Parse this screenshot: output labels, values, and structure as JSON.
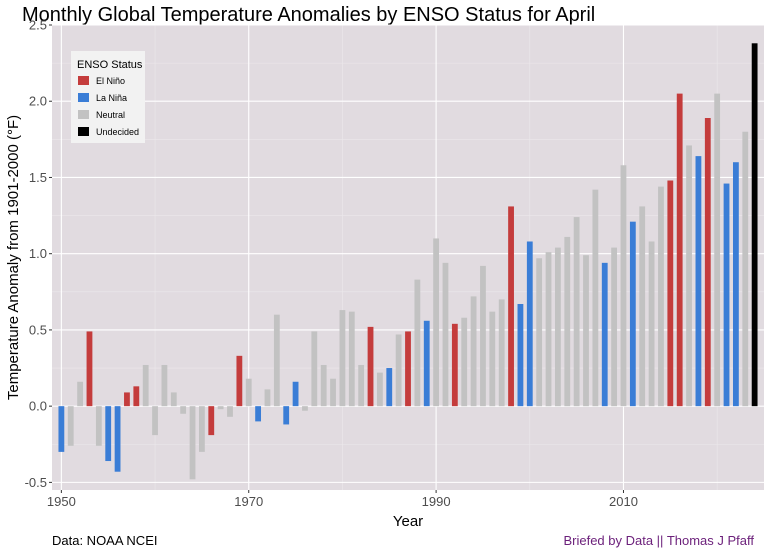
{
  "chart_data": {
    "type": "bar",
    "title": "Monthly Global Temperature Anomalies by ENSO Status for April",
    "xlabel": "Year",
    "ylabel": "Temperature Anomaly from 1901-2000  (°F)",
    "ylim": [
      -0.55,
      2.5
    ],
    "xlim": [
      1949,
      2025
    ],
    "yticks": [
      -0.5,
      0.0,
      0.5,
      1.0,
      1.5,
      2.0,
      2.5
    ],
    "ytick_labels": [
      "-0.5",
      "0.0",
      "0.5",
      "1.0",
      "1.5",
      "2.0",
      "2.5"
    ],
    "xticks": [
      1950,
      1970,
      1990,
      2010
    ],
    "xtick_labels": [
      "1950",
      "1970",
      "1990",
      "2010"
    ],
    "legend": {
      "title": "ENSO Status",
      "position": "top-left",
      "entries": [
        {
          "status": "El Niño",
          "color": "#c43c3c"
        },
        {
          "status": "La Niña",
          "color": "#3a7dd6"
        },
        {
          "status": "Neutral",
          "color": "#c2c2c2"
        },
        {
          "status": "Undecided",
          "color": "#000000"
        }
      ]
    },
    "data": [
      {
        "year": 1950,
        "value": -0.3,
        "status": "La Niña"
      },
      {
        "year": 1951,
        "value": -0.26,
        "status": "Neutral"
      },
      {
        "year": 1952,
        "value": 0.16,
        "status": "Neutral"
      },
      {
        "year": 1953,
        "value": 0.49,
        "status": "El Niño"
      },
      {
        "year": 1954,
        "value": -0.26,
        "status": "Neutral"
      },
      {
        "year": 1955,
        "value": -0.36,
        "status": "La Niña"
      },
      {
        "year": 1956,
        "value": -0.43,
        "status": "La Niña"
      },
      {
        "year": 1957,
        "value": 0.09,
        "status": "El Niño"
      },
      {
        "year": 1958,
        "value": 0.13,
        "status": "El Niño"
      },
      {
        "year": 1959,
        "value": 0.27,
        "status": "Neutral"
      },
      {
        "year": 1960,
        "value": -0.19,
        "status": "Neutral"
      },
      {
        "year": 1961,
        "value": 0.27,
        "status": "Neutral"
      },
      {
        "year": 1962,
        "value": 0.09,
        "status": "Neutral"
      },
      {
        "year": 1963,
        "value": -0.05,
        "status": "Neutral"
      },
      {
        "year": 1964,
        "value": -0.48,
        "status": "Neutral"
      },
      {
        "year": 1965,
        "value": -0.3,
        "status": "Neutral"
      },
      {
        "year": 1966,
        "value": -0.19,
        "status": "El Niño"
      },
      {
        "year": 1967,
        "value": -0.02,
        "status": "Neutral"
      },
      {
        "year": 1968,
        "value": -0.07,
        "status": "Neutral"
      },
      {
        "year": 1969,
        "value": 0.33,
        "status": "El Niño"
      },
      {
        "year": 1970,
        "value": 0.18,
        "status": "Neutral"
      },
      {
        "year": 1971,
        "value": -0.1,
        "status": "La Niña"
      },
      {
        "year": 1972,
        "value": 0.11,
        "status": "Neutral"
      },
      {
        "year": 1973,
        "value": 0.6,
        "status": "Neutral"
      },
      {
        "year": 1974,
        "value": -0.12,
        "status": "La Niña"
      },
      {
        "year": 1975,
        "value": 0.16,
        "status": "La Niña"
      },
      {
        "year": 1976,
        "value": -0.03,
        "status": "Neutral"
      },
      {
        "year": 1977,
        "value": 0.49,
        "status": "Neutral"
      },
      {
        "year": 1978,
        "value": 0.27,
        "status": "Neutral"
      },
      {
        "year": 1979,
        "value": 0.18,
        "status": "Neutral"
      },
      {
        "year": 1980,
        "value": 0.63,
        "status": "Neutral"
      },
      {
        "year": 1981,
        "value": 0.62,
        "status": "Neutral"
      },
      {
        "year": 1982,
        "value": 0.27,
        "status": "Neutral"
      },
      {
        "year": 1983,
        "value": 0.52,
        "status": "El Niño"
      },
      {
        "year": 1984,
        "value": 0.22,
        "status": "Neutral"
      },
      {
        "year": 1985,
        "value": 0.25,
        "status": "La Niña"
      },
      {
        "year": 1986,
        "value": 0.47,
        "status": "Neutral"
      },
      {
        "year": 1987,
        "value": 0.49,
        "status": "El Niño"
      },
      {
        "year": 1988,
        "value": 0.83,
        "status": "Neutral"
      },
      {
        "year": 1989,
        "value": 0.56,
        "status": "La Niña"
      },
      {
        "year": 1990,
        "value": 1.1,
        "status": "Neutral"
      },
      {
        "year": 1991,
        "value": 0.94,
        "status": "Neutral"
      },
      {
        "year": 1992,
        "value": 0.54,
        "status": "El Niño"
      },
      {
        "year": 1993,
        "value": 0.58,
        "status": "Neutral"
      },
      {
        "year": 1994,
        "value": 0.72,
        "status": "Neutral"
      },
      {
        "year": 1995,
        "value": 0.92,
        "status": "Neutral"
      },
      {
        "year": 1996,
        "value": 0.62,
        "status": "Neutral"
      },
      {
        "year": 1997,
        "value": 0.7,
        "status": "Neutral"
      },
      {
        "year": 1998,
        "value": 1.31,
        "status": "El Niño"
      },
      {
        "year": 1999,
        "value": 0.67,
        "status": "La Niña"
      },
      {
        "year": 2000,
        "value": 1.08,
        "status": "La Niña"
      },
      {
        "year": 2001,
        "value": 0.97,
        "status": "Neutral"
      },
      {
        "year": 2002,
        "value": 1.01,
        "status": "Neutral"
      },
      {
        "year": 2003,
        "value": 1.04,
        "status": "Neutral"
      },
      {
        "year": 2004,
        "value": 1.11,
        "status": "Neutral"
      },
      {
        "year": 2005,
        "value": 1.24,
        "status": "Neutral"
      },
      {
        "year": 2006,
        "value": 0.99,
        "status": "Neutral"
      },
      {
        "year": 2007,
        "value": 1.42,
        "status": "Neutral"
      },
      {
        "year": 2008,
        "value": 0.94,
        "status": "La Niña"
      },
      {
        "year": 2009,
        "value": 1.04,
        "status": "Neutral"
      },
      {
        "year": 2010,
        "value": 1.58,
        "status": "Neutral"
      },
      {
        "year": 2011,
        "value": 1.21,
        "status": "La Niña"
      },
      {
        "year": 2012,
        "value": 1.31,
        "status": "Neutral"
      },
      {
        "year": 2013,
        "value": 1.08,
        "status": "Neutral"
      },
      {
        "year": 2014,
        "value": 1.44,
        "status": "Neutral"
      },
      {
        "year": 2015,
        "value": 1.48,
        "status": "El Niño"
      },
      {
        "year": 2016,
        "value": 2.05,
        "status": "El Niño"
      },
      {
        "year": 2017,
        "value": 1.71,
        "status": "Neutral"
      },
      {
        "year": 2018,
        "value": 1.64,
        "status": "La Niña"
      },
      {
        "year": 2019,
        "value": 1.89,
        "status": "El Niño"
      },
      {
        "year": 2020,
        "value": 2.05,
        "status": "Neutral"
      },
      {
        "year": 2021,
        "value": 1.46,
        "status": "La Niña"
      },
      {
        "year": 2022,
        "value": 1.6,
        "status": "La Niña"
      },
      {
        "year": 2023,
        "value": 1.8,
        "status": "Neutral"
      },
      {
        "year": 2024,
        "value": 2.38,
        "status": "Undecided"
      }
    ]
  },
  "footer": {
    "source": "Data: NOAA NCEI",
    "credit": "Briefed by Data || Thomas J Pfaff"
  }
}
